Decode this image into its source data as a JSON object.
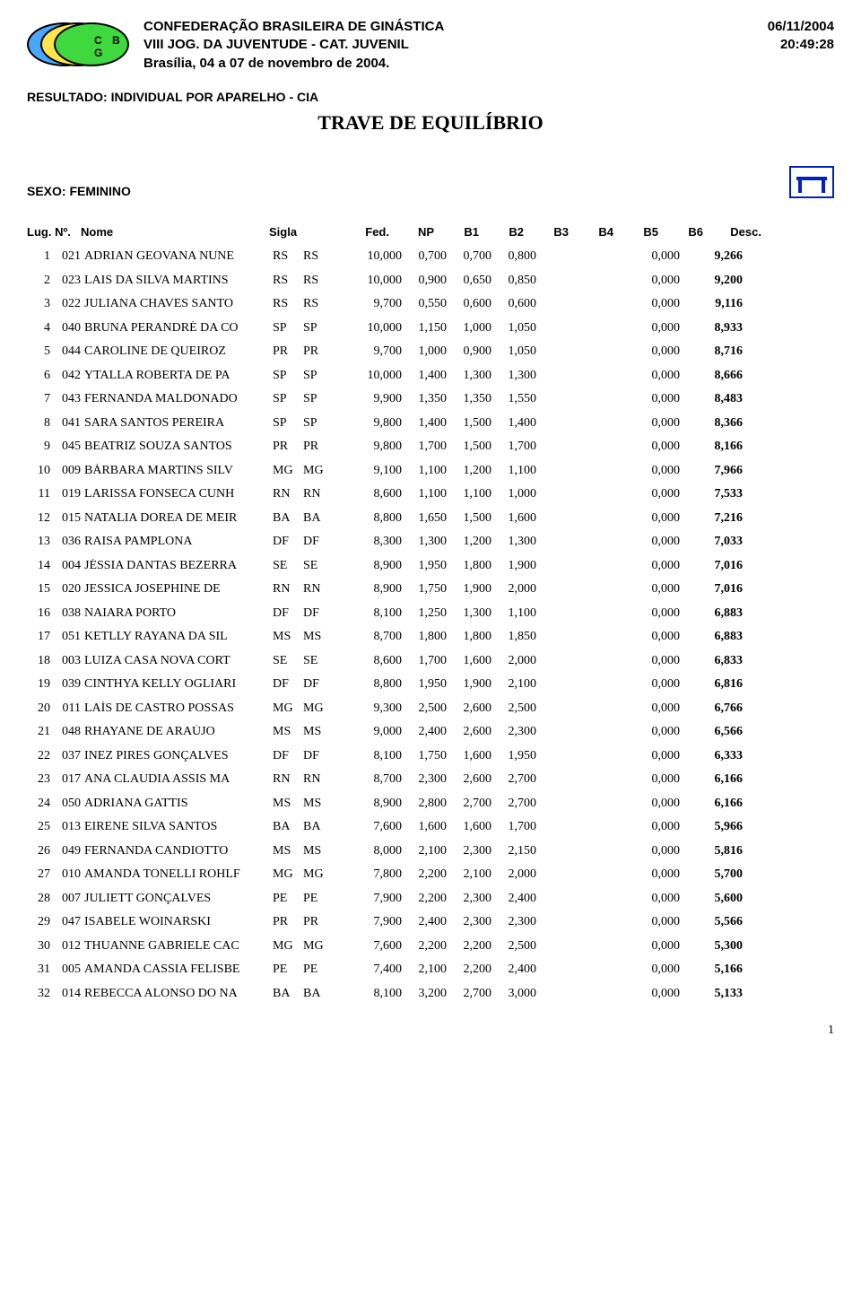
{
  "logo": {
    "letters": "C B G"
  },
  "header": {
    "org": "CONFEDERAÇÃO BRASILEIRA DE GINÁSTICA",
    "event": "VIII JOG. DA JUVENTUDE - CAT. JUVENIL",
    "location": "Brasília, 04 a 07 de novembro de 2004.",
    "date": "06/11/2004",
    "time": "20:49:28"
  },
  "result_label": "RESULTADO: INDIVIDUAL POR APARELHO - CIA",
  "apparatus_title": "TRAVE DE EQUILÍBRIO",
  "sexo_label": "SEXO: FEMININO",
  "columns": {
    "lug": "Lug.",
    "no": "Nº.",
    "nome": "Nome",
    "sigla": "Sigla",
    "fed": "Fed.",
    "np": "NP",
    "b1": "B1",
    "b2": "B2",
    "b3": "B3",
    "b4": "B4",
    "b5": "B5",
    "b6": "B6",
    "desc": "Desc."
  },
  "icon_colors": {
    "stroke": "#0020c0",
    "bg": "#ffffff"
  },
  "rows": [
    {
      "lug": "1",
      "no": "021",
      "nome": "ADRIAN GEOVANA NUNE",
      "sigla": "RS",
      "fed": "RS",
      "np": "10,000",
      "b1": "0,700",
      "b2": "0,700",
      "b3": "0,800",
      "b4": "",
      "b5": "",
      "b6": "0,000",
      "desc": "9,266"
    },
    {
      "lug": "2",
      "no": "023",
      "nome": "LAIS DA SILVA MARTINS",
      "sigla": "RS",
      "fed": "RS",
      "np": "10,000",
      "b1": "0,900",
      "b2": "0,650",
      "b3": "0,850",
      "b4": "",
      "b5": "",
      "b6": "0,000",
      "desc": "9,200"
    },
    {
      "lug": "3",
      "no": "022",
      "nome": "JULIANA CHAVES SANTO",
      "sigla": "RS",
      "fed": "RS",
      "np": "9,700",
      "b1": "0,550",
      "b2": "0,600",
      "b3": "0,600",
      "b4": "",
      "b5": "",
      "b6": "0,000",
      "desc": "9,116"
    },
    {
      "lug": "4",
      "no": "040",
      "nome": "BRUNA PERANDRÉ DA CO",
      "sigla": "SP",
      "fed": "SP",
      "np": "10,000",
      "b1": "1,150",
      "b2": "1,000",
      "b3": "1,050",
      "b4": "",
      "b5": "",
      "b6": "0,000",
      "desc": "8,933"
    },
    {
      "lug": "5",
      "no": "044",
      "nome": "CAROLINE DE QUEIROZ",
      "sigla": "PR",
      "fed": "PR",
      "np": "9,700",
      "b1": "1,000",
      "b2": "0,900",
      "b3": "1,050",
      "b4": "",
      "b5": "",
      "b6": "0,000",
      "desc": "8,716"
    },
    {
      "lug": "6",
      "no": "042",
      "nome": "YTALLA ROBERTA DE PA",
      "sigla": "SP",
      "fed": "SP",
      "np": "10,000",
      "b1": "1,400",
      "b2": "1,300",
      "b3": "1,300",
      "b4": "",
      "b5": "",
      "b6": "0,000",
      "desc": "8,666"
    },
    {
      "lug": "7",
      "no": "043",
      "nome": "FERNANDA MALDONADO",
      "sigla": "SP",
      "fed": "SP",
      "np": "9,900",
      "b1": "1,350",
      "b2": "1,350",
      "b3": "1,550",
      "b4": "",
      "b5": "",
      "b6": "0,000",
      "desc": "8,483"
    },
    {
      "lug": "8",
      "no": "041",
      "nome": "SARA SANTOS PEREIRA",
      "sigla": "SP",
      "fed": "SP",
      "np": "9,800",
      "b1": "1,400",
      "b2": "1,500",
      "b3": "1,400",
      "b4": "",
      "b5": "",
      "b6": "0,000",
      "desc": "8,366"
    },
    {
      "lug": "9",
      "no": "045",
      "nome": "BEATRIZ SOUZA SANTOS",
      "sigla": "PR",
      "fed": "PR",
      "np": "9,800",
      "b1": "1,700",
      "b2": "1,500",
      "b3": "1,700",
      "b4": "",
      "b5": "",
      "b6": "0,000",
      "desc": "8,166"
    },
    {
      "lug": "10",
      "no": "009",
      "nome": "BÁRBARA MARTINS SILV",
      "sigla": "MG",
      "fed": "MG",
      "np": "9,100",
      "b1": "1,100",
      "b2": "1,200",
      "b3": "1,100",
      "b4": "",
      "b5": "",
      "b6": "0,000",
      "desc": "7,966"
    },
    {
      "lug": "11",
      "no": "019",
      "nome": "LARISSA FONSECA CUNH",
      "sigla": "RN",
      "fed": "RN",
      "np": "8,600",
      "b1": "1,100",
      "b2": "1,100",
      "b3": "1,000",
      "b4": "",
      "b5": "",
      "b6": "0,000",
      "desc": "7,533"
    },
    {
      "lug": "12",
      "no": "015",
      "nome": "NATALIA DOREA DE MEIR",
      "sigla": "BA",
      "fed": "BA",
      "np": "8,800",
      "b1": "1,650",
      "b2": "1,500",
      "b3": "1,600",
      "b4": "",
      "b5": "",
      "b6": "0,000",
      "desc": "7,216"
    },
    {
      "lug": "13",
      "no": "036",
      "nome": "RAISA PAMPLONA",
      "sigla": "DF",
      "fed": "DF",
      "np": "8,300",
      "b1": "1,300",
      "b2": "1,200",
      "b3": "1,300",
      "b4": "",
      "b5": "",
      "b6": "0,000",
      "desc": "7,033"
    },
    {
      "lug": "14",
      "no": "004",
      "nome": "JÉSSIA DANTAS BEZERRA",
      "sigla": "SE",
      "fed": "SE",
      "np": "8,900",
      "b1": "1,950",
      "b2": "1,800",
      "b3": "1,900",
      "b4": "",
      "b5": "",
      "b6": "0,000",
      "desc": "7,016"
    },
    {
      "lug": "15",
      "no": "020",
      "nome": "JESSICA JOSEPHINE DE",
      "sigla": "RN",
      "fed": "RN",
      "np": "8,900",
      "b1": "1,750",
      "b2": "1,900",
      "b3": "2,000",
      "b4": "",
      "b5": "",
      "b6": "0,000",
      "desc": "7,016"
    },
    {
      "lug": "16",
      "no": "038",
      "nome": "NAIARA PORTO",
      "sigla": "DF",
      "fed": "DF",
      "np": "8,100",
      "b1": "1,250",
      "b2": "1,300",
      "b3": "1,100",
      "b4": "",
      "b5": "",
      "b6": "0,000",
      "desc": "6,883"
    },
    {
      "lug": "17",
      "no": "051",
      "nome": "KETLLY RAYANA DA SIL",
      "sigla": "MS",
      "fed": "MS",
      "np": "8,700",
      "b1": "1,800",
      "b2": "1,800",
      "b3": "1,850",
      "b4": "",
      "b5": "",
      "b6": "0,000",
      "desc": "6,883"
    },
    {
      "lug": "18",
      "no": "003",
      "nome": "LUIZA CASA NOVA CORT",
      "sigla": "SE",
      "fed": "SE",
      "np": "8,600",
      "b1": "1,700",
      "b2": "1,600",
      "b3": "2,000",
      "b4": "",
      "b5": "",
      "b6": "0,000",
      "desc": "6,833"
    },
    {
      "lug": "19",
      "no": "039",
      "nome": "CINTHYA KELLY OGLIARI",
      "sigla": "DF",
      "fed": "DF",
      "np": "8,800",
      "b1": "1,950",
      "b2": "1,900",
      "b3": "2,100",
      "b4": "",
      "b5": "",
      "b6": "0,000",
      "desc": "6,816"
    },
    {
      "lug": "20",
      "no": "011",
      "nome": "LAÍS DE CASTRO POSSAS",
      "sigla": "MG",
      "fed": "MG",
      "np": "9,300",
      "b1": "2,500",
      "b2": "2,600",
      "b3": "2,500",
      "b4": "",
      "b5": "",
      "b6": "0,000",
      "desc": "6,766"
    },
    {
      "lug": "21",
      "no": "048",
      "nome": "RHAYANE DE ARAÚJO",
      "sigla": "MS",
      "fed": "MS",
      "np": "9,000",
      "b1": "2,400",
      "b2": "2,600",
      "b3": "2,300",
      "b4": "",
      "b5": "",
      "b6": "0,000",
      "desc": "6,566"
    },
    {
      "lug": "22",
      "no": "037",
      "nome": "INEZ PIRES GONÇALVES",
      "sigla": "DF",
      "fed": "DF",
      "np": "8,100",
      "b1": "1,750",
      "b2": "1,600",
      "b3": "1,950",
      "b4": "",
      "b5": "",
      "b6": "0,000",
      "desc": "6,333"
    },
    {
      "lug": "23",
      "no": "017",
      "nome": "ANA CLAUDIA ASSIS MA",
      "sigla": "RN",
      "fed": "RN",
      "np": "8,700",
      "b1": "2,300",
      "b2": "2,600",
      "b3": "2,700",
      "b4": "",
      "b5": "",
      "b6": "0,000",
      "desc": "6,166"
    },
    {
      "lug": "24",
      "no": "050",
      "nome": "ADRIANA GATTIS",
      "sigla": "MS",
      "fed": "MS",
      "np": "8,900",
      "b1": "2,800",
      "b2": "2,700",
      "b3": "2,700",
      "b4": "",
      "b5": "",
      "b6": "0,000",
      "desc": "6,166"
    },
    {
      "lug": "25",
      "no": "013",
      "nome": "EIRENE SILVA SANTOS",
      "sigla": "BA",
      "fed": "BA",
      "np": "7,600",
      "b1": "1,600",
      "b2": "1,600",
      "b3": "1,700",
      "b4": "",
      "b5": "",
      "b6": "0,000",
      "desc": "5,966"
    },
    {
      "lug": "26",
      "no": "049",
      "nome": "FERNANDA CANDIOTTO",
      "sigla": "MS",
      "fed": "MS",
      "np": "8,000",
      "b1": "2,100",
      "b2": "2,300",
      "b3": "2,150",
      "b4": "",
      "b5": "",
      "b6": "0,000",
      "desc": "5,816"
    },
    {
      "lug": "27",
      "no": "010",
      "nome": "AMANDA TONELLI ROHLF",
      "sigla": "MG",
      "fed": "MG",
      "np": "7,800",
      "b1": "2,200",
      "b2": "2,100",
      "b3": "2,000",
      "b4": "",
      "b5": "",
      "b6": "0,000",
      "desc": "5,700"
    },
    {
      "lug": "28",
      "no": "007",
      "nome": "JULIETT GONÇALVES",
      "sigla": "PE",
      "fed": "PE",
      "np": "7,900",
      "b1": "2,200",
      "b2": "2,300",
      "b3": "2,400",
      "b4": "",
      "b5": "",
      "b6": "0,000",
      "desc": "5,600"
    },
    {
      "lug": "29",
      "no": "047",
      "nome": "ISABELE WOINARSKI",
      "sigla": "PR",
      "fed": "PR",
      "np": "7,900",
      "b1": "2,400",
      "b2": "2,300",
      "b3": "2,300",
      "b4": "",
      "b5": "",
      "b6": "0,000",
      "desc": "5,566"
    },
    {
      "lug": "30",
      "no": "012",
      "nome": "THUANNE GABRIELE CAC",
      "sigla": "MG",
      "fed": "MG",
      "np": "7,600",
      "b1": "2,200",
      "b2": "2,200",
      "b3": "2,500",
      "b4": "",
      "b5": "",
      "b6": "0,000",
      "desc": "5,300"
    },
    {
      "lug": "31",
      "no": "005",
      "nome": "AMANDA CASSIA FELISBE",
      "sigla": "PE",
      "fed": "PE",
      "np": "7,400",
      "b1": "2,100",
      "b2": "2,200",
      "b3": "2,400",
      "b4": "",
      "b5": "",
      "b6": "0,000",
      "desc": "5,166"
    },
    {
      "lug": "32",
      "no": "014",
      "nome": "REBECCA ALONSO DO NA",
      "sigla": "BA",
      "fed": "BA",
      "np": "8,100",
      "b1": "3,200",
      "b2": "2,700",
      "b3": "3,000",
      "b4": "",
      "b5": "",
      "b6": "0,000",
      "desc": "5,133"
    }
  ],
  "page_number": "1"
}
